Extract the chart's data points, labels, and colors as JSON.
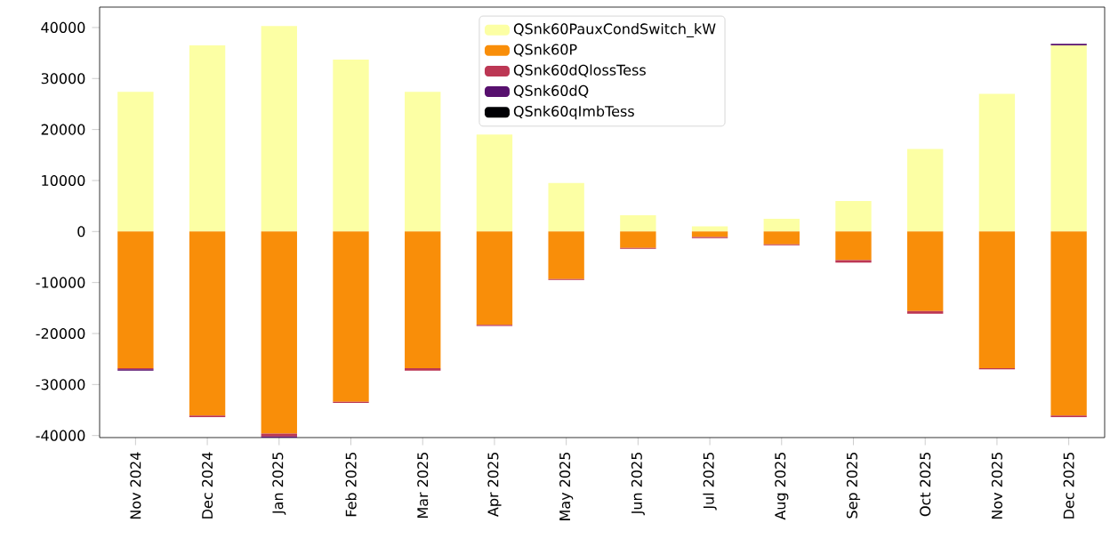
{
  "chart_data": {
    "type": "bar",
    "stacked": true,
    "categories": [
      "Nov 2024",
      "Dec 2024",
      "Jan 2025",
      "Feb 2025",
      "Mar 2025",
      "Apr 2025",
      "May 2025",
      "Jun 2025",
      "Jul 2025",
      "Aug 2025",
      "Sep 2025",
      "Oct 2025",
      "Nov 2025",
      "Dec 2025"
    ],
    "series": [
      {
        "name": "QSnk60PauxCondSwitch_kW",
        "color": "#fcffa4",
        "values": [
          27400,
          36500,
          40300,
          33700,
          27400,
          19000,
          9500,
          3200,
          1000,
          2500,
          6000,
          16200,
          27000,
          36500
        ]
      },
      {
        "name": "QSnk60P",
        "color": "#f98e09",
        "values": [
          -26800,
          -36100,
          -39600,
          -33400,
          -26800,
          -18300,
          -9300,
          -3200,
          -1100,
          -2500,
          -5600,
          -15600,
          -26800,
          -36100
        ]
      },
      {
        "name": "QSnk60dQlossTess",
        "color": "#bc3754",
        "values": [
          -200,
          -300,
          -600,
          -200,
          -500,
          -200,
          -200,
          -200,
          -200,
          -200,
          -500,
          -500,
          -200,
          -300
        ]
      },
      {
        "name": "QSnk60dQ",
        "color": "#57106e",
        "values": [
          -300,
          0,
          -200,
          0,
          0,
          0,
          0,
          0,
          0,
          0,
          0,
          0,
          0,
          300
        ]
      },
      {
        "name": "QSnk60qImbTess",
        "color": "#000004",
        "values": [
          0,
          0,
          0,
          0,
          0,
          0,
          0,
          0,
          0,
          0,
          0,
          0,
          0,
          0
        ]
      }
    ],
    "ylim": [
      -40400,
      44000
    ],
    "yticks": [
      -40000,
      -30000,
      -20000,
      -10000,
      0,
      10000,
      20000,
      30000,
      40000
    ],
    "legend": "top center",
    "grid": false
  }
}
